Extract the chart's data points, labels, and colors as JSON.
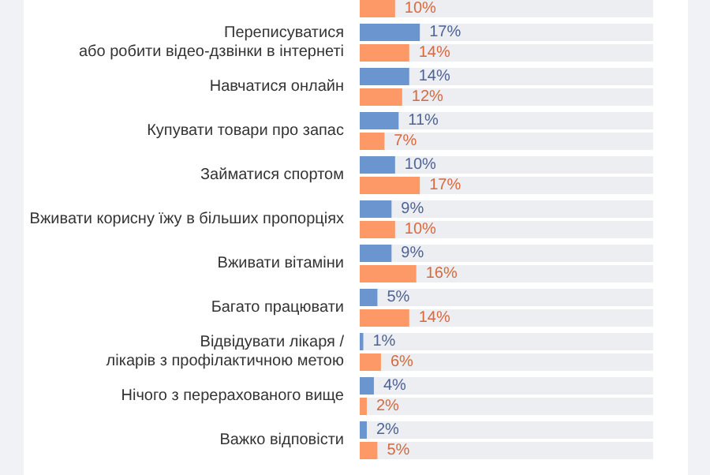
{
  "chart_data": {
    "type": "bar",
    "orientation": "horizontal",
    "categories": [
      null,
      "Переписуватися\nабо робити відео-дзвінки в інтернеті",
      "Навчатися онлайн",
      "Купувати товари про запас",
      "Займатися спортом",
      "Вживати корисну їжу в більших пропорціях",
      "Вживати вітаміни",
      "Багато працювати",
      "Відвідувати лікаря /\nлікарів з профілактичною метою",
      "Нічого з перерахованого вище",
      "Важко відповісти"
    ],
    "xlim": [
      0,
      83
    ],
    "tick_labels": "y",
    "grid": false,
    "series": [
      {
        "color": "#6a95cf",
        "values": [
          null,
          17,
          14,
          11,
          10,
          9,
          9,
          5,
          1,
          4,
          2
        ],
        "value_labels": [
          null,
          "17%",
          "14%",
          "11%",
          "10%",
          "9%",
          "9%",
          "5%",
          "1%",
          "4%",
          "2%"
        ]
      },
      {
        "color": "#fd9966",
        "values": [
          10,
          14,
          12,
          7,
          17,
          10,
          16,
          14,
          6,
          2,
          5
        ],
        "value_labels": [
          "10%",
          "14%",
          "12%",
          "7%",
          "17%",
          "10%",
          "16%",
          "14%",
          "6%",
          "2%",
          "5%"
        ]
      }
    ]
  }
}
